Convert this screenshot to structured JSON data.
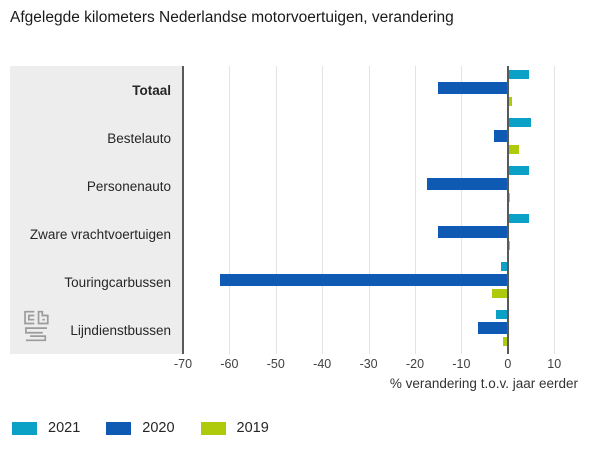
{
  "title": "Afgelegde kilometers Nederlandse motorvoertuigen, verandering",
  "chart_data": {
    "type": "bar",
    "orientation": "horizontal",
    "title": "Afgelegde kilometers Nederlandse motorvoertuigen, verandering",
    "categories": [
      "Totaal",
      "Bestelauto",
      "Personenauto",
      "Zware vrachtvoertuigen",
      "Touringcarbussen",
      "Lijndienstbussen"
    ],
    "bold_categories": [
      "Totaal"
    ],
    "series": [
      {
        "name": "2021",
        "color": "#0ba1c7",
        "values": [
          4.5,
          5,
          4.5,
          4.5,
          -1.5,
          -2.5
        ]
      },
      {
        "name": "2020",
        "color": "#0f5bb4",
        "values": [
          -15,
          -3,
          -17.5,
          -15,
          -62,
          -6.5
        ]
      },
      {
        "name": "2019",
        "color": "#afca0b",
        "values": [
          1,
          2.5,
          0.5,
          0.5,
          -3.5,
          -1
        ]
      }
    ],
    "xlabel": "% verandering t.o.v. jaar eerder",
    "xmin": -70,
    "xmax": 13.4,
    "xticks": [
      -70,
      -60,
      -50,
      -40,
      -30,
      -20,
      -10,
      0,
      10
    ],
    "grid": "vertical",
    "legend_position": "bottom-left"
  },
  "colors": {
    "panel_background": "#ededed",
    "axis_dark_line": "#58595b",
    "gridline": "#e3e3e3",
    "text": "#262626"
  },
  "logo": {
    "name": "cbs"
  }
}
